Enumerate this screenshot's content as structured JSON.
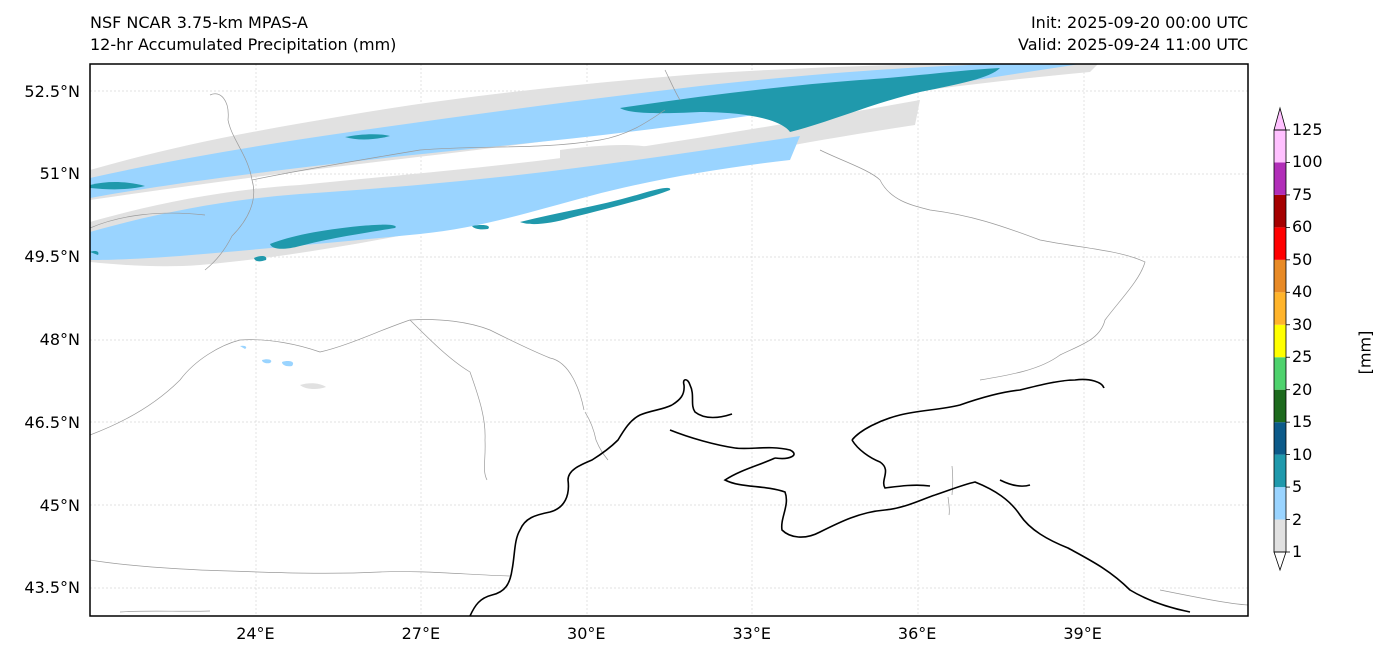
{
  "header": {
    "title_line1": "NSF NCAR 3.75-km MPAS-A",
    "title_line2": "12-hr Accumulated Precipitation (mm)",
    "init": "Init: 2025-09-20 00:00 UTC",
    "valid": "Valid: 2025-09-24 11:00 UTC"
  },
  "axes": {
    "lat_labels": [
      "52.5°N",
      "51°N",
      "49.5°N",
      "48°N",
      "46.5°N",
      "45°N",
      "43.5°N"
    ],
    "lon_labels": [
      "24°E",
      "27°E",
      "30°E",
      "33°E",
      "36°E",
      "39°E"
    ],
    "lat_values": [
      52.5,
      51,
      49.5,
      48,
      46.5,
      45,
      43.5
    ],
    "lon_values": [
      24,
      27,
      30,
      33,
      36,
      39
    ],
    "lon_range": [
      21,
      42
    ],
    "lat_range": [
      43,
      53
    ]
  },
  "colorbar": {
    "unit": "[mm]",
    "levels": [
      "1",
      "2",
      "5",
      "10",
      "15",
      "20",
      "25",
      "30",
      "40",
      "50",
      "60",
      "75",
      "100",
      "125"
    ],
    "colors": [
      "#e1e1e1",
      "#9ad4ff",
      "#2099ac",
      "#0c5a89",
      "#1d6a1d",
      "#4ed26d",
      "#ffff00",
      "#ffb42b",
      "#e88a26",
      "#ff0000",
      "#a50000",
      "#b12eb8",
      "#ffc1ff"
    ]
  },
  "style": {
    "light_gray": "#e1e1e1",
    "light_blue": "#9ad4ff",
    "teal": "#2099ac",
    "border_gray": "#9a9a9a",
    "coast_black": "#000000"
  }
}
